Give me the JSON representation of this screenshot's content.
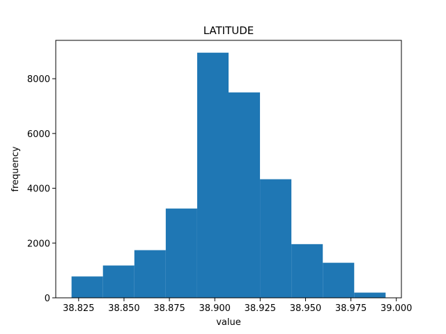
{
  "chart_data": {
    "type": "bar",
    "title": "LATITUDE",
    "xlabel": "value",
    "ylabel": "frequency",
    "bin_edges": [
      38.8211,
      38.8384,
      38.8557,
      38.873,
      38.8903,
      38.9076,
      38.9249,
      38.9422,
      38.9595,
      38.9768,
      38.9941
    ],
    "values": [
      780,
      1180,
      1740,
      3260,
      8950,
      7500,
      4330,
      1960,
      1280,
      190
    ],
    "xlim": [
      38.8124,
      39.0028
    ],
    "ylim": [
      0,
      9400
    ],
    "x_ticks": [
      {
        "value": 38.825,
        "label": "38.825"
      },
      {
        "value": 38.85,
        "label": "38.850"
      },
      {
        "value": 38.875,
        "label": "38.875"
      },
      {
        "value": 38.9,
        "label": "38.900"
      },
      {
        "value": 38.925,
        "label": "38.925"
      },
      {
        "value": 38.95,
        "label": "38.950"
      },
      {
        "value": 38.975,
        "label": "38.975"
      },
      {
        "value": 39.0,
        "label": "39.000"
      }
    ],
    "y_ticks": [
      {
        "value": 0,
        "label": "0"
      },
      {
        "value": 2000,
        "label": "2000"
      },
      {
        "value": 4000,
        "label": "4000"
      },
      {
        "value": 6000,
        "label": "6000"
      },
      {
        "value": 8000,
        "label": "8000"
      }
    ],
    "bar_color": "#1f77b4",
    "grid": false,
    "legend": false
  }
}
